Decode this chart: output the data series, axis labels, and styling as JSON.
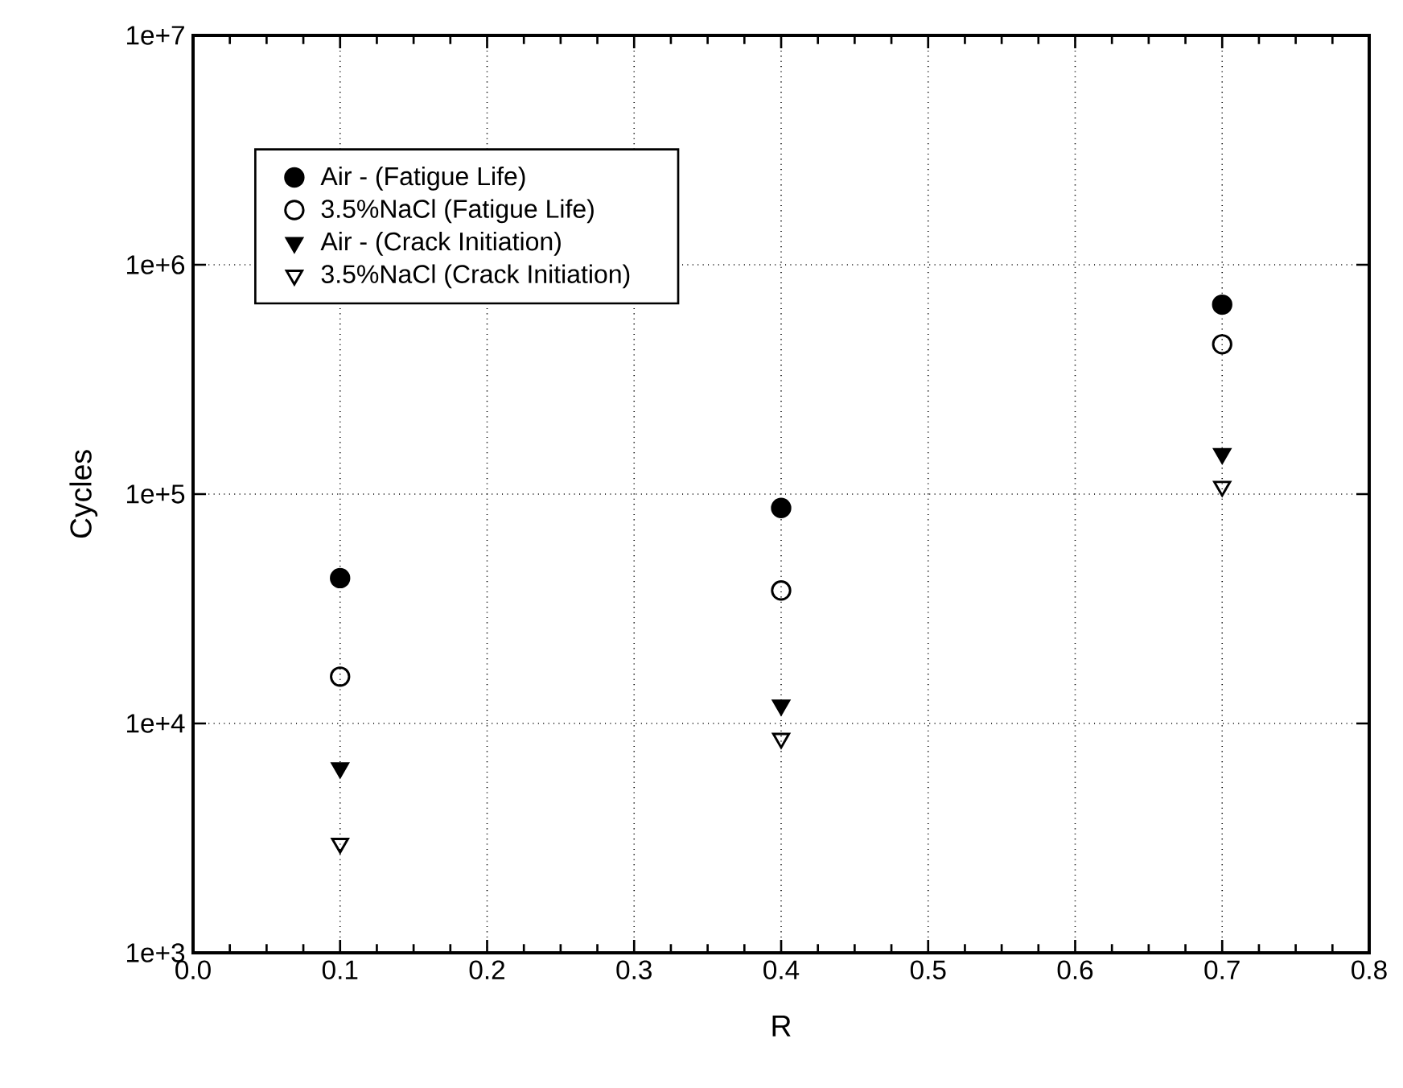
{
  "chart_data": {
    "type": "scatter",
    "xlabel": "R",
    "ylabel": "Cycles",
    "xlim": [
      0.0,
      0.8
    ],
    "xticks": [
      {
        "value": 0.0,
        "label": "0.0"
      },
      0.1,
      0.2,
      0.3,
      0.4,
      0.5,
      0.6,
      0.7,
      0.8
    ],
    "ylim": [
      1000,
      10000000
    ],
    "yticks": [
      {
        "value": 1000,
        "label": "1e+3"
      },
      {
        "value": 10000,
        "label": "1e+4"
      },
      {
        "value": 100000,
        "label": "1e+5"
      },
      {
        "value": 1000000,
        "label": "1e+6"
      },
      {
        "value": 10000000,
        "label": "1e+7"
      }
    ],
    "log": "y",
    "grid": true,
    "legend": "top left",
    "series": [
      {
        "name": "Air - (Fatigue Life)",
        "color": "#000000",
        "marker": "circle",
        "x": [
          0.1,
          0.4,
          0.7
        ],
        "values": [
          43000,
          87000,
          670000
        ]
      },
      {
        "name": "3.5%NaCl (Fatigue Life)",
        "color": "#000000",
        "marker": "circle",
        "x": [
          0.1,
          0.4,
          0.7
        ],
        "values": [
          16000,
          38000,
          450000
        ]
      },
      {
        "name": "Air - (Crack Initiation)",
        "color": "#000000",
        "marker": "triangle",
        "x": [
          0.1,
          0.4,
          0.7
        ],
        "values": [
          6400,
          12000,
          150000
        ]
      },
      {
        "name": "3.5%NaCl (Crack Initiation)",
        "color": "#000000",
        "marker": "triangle",
        "x": [
          0.1,
          0.4,
          0.7
        ],
        "values": [
          3000,
          8600,
          108000
        ]
      }
    ]
  }
}
